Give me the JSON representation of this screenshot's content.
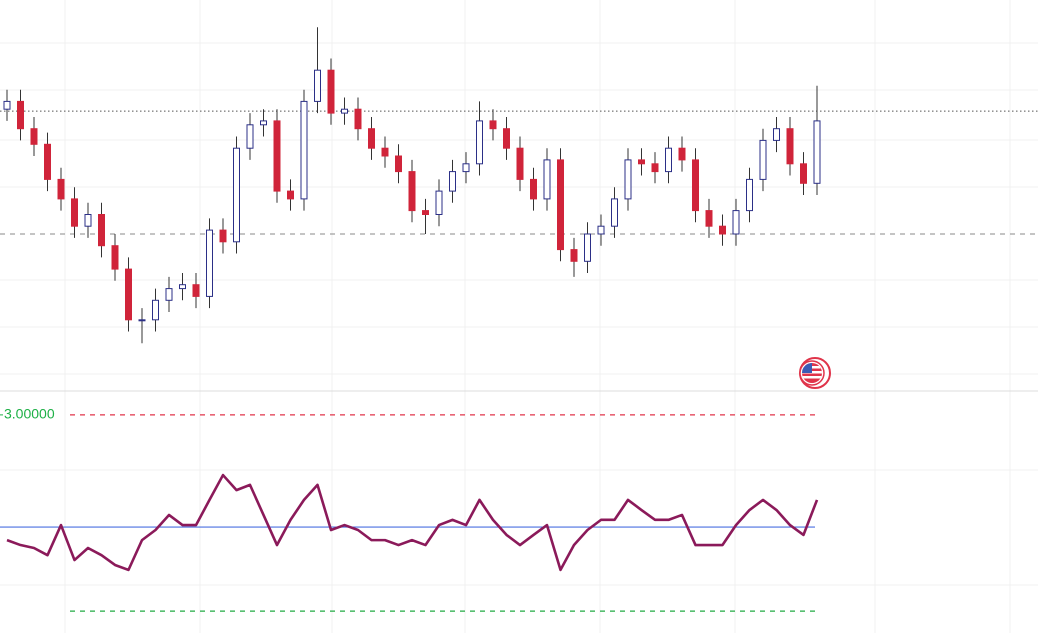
{
  "chart_data": [
    {
      "type": "candlestick",
      "ylim": [
        0,
        100
      ],
      "open": [
        72,
        74,
        67,
        63,
        54,
        49,
        42,
        45,
        37,
        31,
        18,
        18,
        23,
        26,
        27,
        24,
        41,
        38,
        62,
        68,
        69,
        51,
        49,
        74,
        82,
        71,
        72,
        67,
        62,
        60,
        56,
        46,
        45,
        51,
        56,
        58,
        69,
        67,
        62,
        54,
        49,
        59,
        36,
        33,
        40,
        42,
        49,
        59,
        58,
        56,
        62,
        59,
        46,
        42,
        40,
        46,
        54,
        64,
        67,
        58,
        53
      ],
      "high": [
        77,
        77,
        70,
        66,
        57,
        52,
        48,
        48,
        40,
        34,
        21,
        26,
        29,
        30,
        30,
        44,
        44,
        65,
        71,
        72,
        72,
        54,
        77,
        93,
        85,
        75,
        75,
        70,
        65,
        63,
        59,
        49,
        54,
        59,
        61,
        74,
        72,
        70,
        65,
        57,
        62,
        62,
        39,
        43,
        45,
        52,
        62,
        62,
        61,
        65,
        65,
        62,
        49,
        45,
        49,
        57,
        67,
        70,
        70,
        61,
        78
      ],
      "low": [
        69,
        64,
        60,
        51,
        46,
        39,
        39,
        34,
        28,
        15,
        12,
        15,
        20,
        23,
        21,
        21,
        35,
        35,
        59,
        65,
        48,
        46,
        46,
        71,
        68,
        68,
        64,
        59,
        57,
        53,
        43,
        40,
        42,
        48,
        53,
        55,
        64,
        59,
        51,
        46,
        46,
        33,
        29,
        30,
        37,
        39,
        46,
        55,
        53,
        53,
        56,
        43,
        39,
        37,
        37,
        43,
        51,
        61,
        55,
        50,
        50
      ],
      "close": [
        74,
        67,
        63,
        54,
        49,
        42,
        45,
        37,
        31,
        18,
        18,
        23,
        26,
        27,
        24,
        41,
        38,
        62,
        68,
        69,
        51,
        49,
        74,
        82,
        71,
        72,
        67,
        62,
        60,
        56,
        46,
        45,
        51,
        56,
        58,
        69,
        67,
        62,
        54,
        49,
        59,
        36,
        33,
        40,
        42,
        49,
        59,
        58,
        56,
        62,
        59,
        46,
        42,
        40,
        46,
        54,
        64,
        67,
        58,
        53,
        69
      ],
      "up_color": "#2b2f87",
      "down_color": "#d0243a",
      "hlines": [
        {
          "value": 71.5,
          "style": "dotted",
          "color": "#555555"
        },
        {
          "value": 40,
          "style": "dashed",
          "color": "#8a8a8a"
        }
      ]
    },
    {
      "type": "line",
      "ylim": [
        -3.67,
        3.7
      ],
      "values": [
        -0.83,
        -0.98,
        -1.07,
        -1.29,
        -0.37,
        -1.44,
        -1.07,
        -1.29,
        -1.59,
        -1.74,
        -0.83,
        -0.52,
        -0.06,
        -0.37,
        -0.37,
        0.4,
        1.16,
        0.7,
        0.86,
        -0.06,
        -0.98,
        -0.21,
        0.4,
        0.86,
        -0.52,
        -0.37,
        -0.52,
        -0.83,
        -0.83,
        -0.98,
        -0.83,
        -0.98,
        -0.37,
        -0.21,
        -0.37,
        0.4,
        -0.21,
        -0.67,
        -0.98,
        -0.67,
        -0.37,
        -1.74,
        -0.98,
        -0.52,
        -0.21,
        -0.21,
        0.4,
        0.09,
        -0.21,
        -0.21,
        -0.06,
        -0.98,
        -0.98,
        -0.98,
        -0.37,
        0.09,
        0.4,
        0.09,
        -0.37,
        -0.67,
        0.4
      ],
      "color": "#8b1a5a",
      "yticks": [
        {
          "value": 3,
          "label": "3.00000"
        }
      ],
      "tick_color": "#1db046",
      "levels": [
        {
          "value": 3,
          "color": "#e0344a",
          "style": "dashed"
        },
        {
          "value": -0.43,
          "color": "#4a6fe0",
          "style": "solid"
        },
        {
          "value": -3,
          "color": "#22aa44",
          "style": "dashed"
        }
      ]
    }
  ]
}
